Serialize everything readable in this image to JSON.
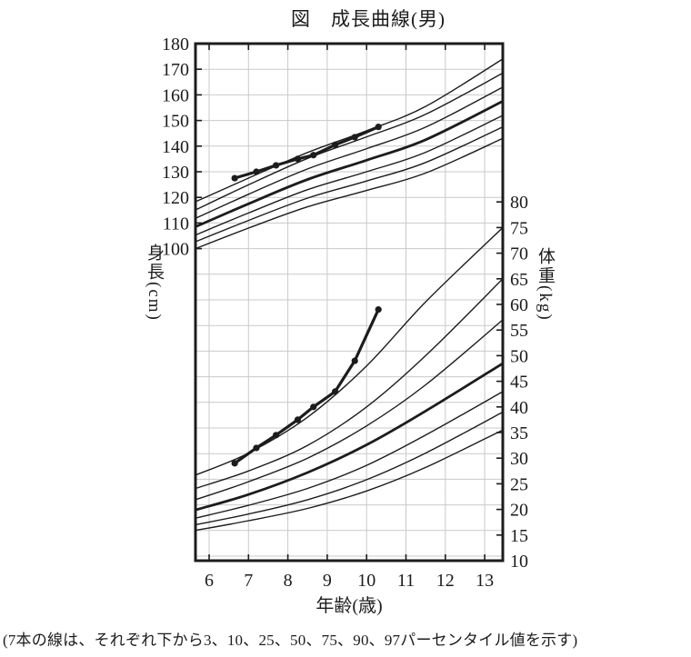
{
  "page": {
    "title": "図　成長曲線(男)",
    "footnote": "(7本の線は、それぞれ下から3、10、25、50、75、90、97パーセンタイル値を示す)"
  },
  "chart_data": {
    "type": "line",
    "title": "図　成長曲線(男)",
    "xlabel": "年齢(歳)",
    "ylabel_left": "身長(cm)",
    "ylabel_right": "体重(kg)",
    "x_ticks": [
      6,
      7,
      8,
      9,
      10,
      11,
      12,
      13
    ],
    "x_range_years": [
      5.65,
      13.46
    ],
    "y_left_ticks": [
      180,
      170,
      160,
      150,
      140,
      130,
      120,
      110,
      100
    ],
    "y_left_unit": "cm",
    "y_right_ticks": [
      80,
      75,
      70,
      65,
      60,
      55,
      50,
      45,
      40,
      35,
      30,
      25,
      20,
      15,
      10
    ],
    "y_right_unit": "kg",
    "grid": true,
    "legend_position": "none",
    "percentiles": [
      3,
      10,
      25,
      50,
      75,
      90,
      97
    ],
    "percentile_note": "7本の線は、それぞれ下から3、10、25、50、75、90、97パーセンタイル値を示す",
    "anchor_ages": [
      5.65,
      7,
      8.5,
      10,
      11.5,
      13.46
    ],
    "height_percentile_curves_cm": [
      {
        "percentile": 3,
        "bold": false,
        "values": [
          100.0,
          108.0,
          116.3,
          122.7,
          129.5,
          143.0
        ]
      },
      {
        "percentile": 10,
        "bold": false,
        "values": [
          102.7,
          111.0,
          119.7,
          126.4,
          133.6,
          147.5
        ]
      },
      {
        "percentile": 25,
        "bold": false,
        "values": [
          105.3,
          113.9,
          123.0,
          130.0,
          137.6,
          152.0
        ]
      },
      {
        "percentile": 50,
        "bold": true,
        "values": [
          108.5,
          117.5,
          127.0,
          134.5,
          142.5,
          157.5
        ]
      },
      {
        "percentile": 75,
        "bold": false,
        "values": [
          111.8,
          121.2,
          131.1,
          139.0,
          147.4,
          163.0
        ]
      },
      {
        "percentile": 90,
        "bold": false,
        "values": [
          115.1,
          124.9,
          135.2,
          143.6,
          152.4,
          168.5
        ]
      },
      {
        "percentile": 97,
        "bold": false,
        "values": [
          118.3,
          127.5,
          137.5,
          146.0,
          155.5,
          174.0
        ]
      }
    ],
    "weight_percentile_curves_kg": [
      {
        "percentile": 3,
        "bold": false,
        "values": [
          15.9,
          17.8,
          20.2,
          23.6,
          28.2,
          35.5
        ]
      },
      {
        "percentile": 10,
        "bold": false,
        "values": [
          17.0,
          19.1,
          21.9,
          25.8,
          31.0,
          39.0
        ]
      },
      {
        "percentile": 25,
        "bold": false,
        "values": [
          18.3,
          20.8,
          24.1,
          28.6,
          34.5,
          43.0
        ]
      },
      {
        "percentile": 50,
        "bold": true,
        "values": [
          19.9,
          22.9,
          27.2,
          32.6,
          39.2,
          48.5
        ]
      },
      {
        "percentile": 75,
        "bold": false,
        "values": [
          21.9,
          25.4,
          30.0,
          36.3,
          44.3,
          57.0
        ]
      },
      {
        "percentile": 90,
        "bold": false,
        "values": [
          24.1,
          27.5,
          32.5,
          40.0,
          50.0,
          65.0
        ]
      },
      {
        "percentile": 97,
        "bold": false,
        "values": [
          26.7,
          31.0,
          38.0,
          48.0,
          60.5,
          75.0
        ]
      }
    ],
    "patient_height_series": {
      "ages_years": [
        6.65,
        7.2,
        7.7,
        8.25,
        8.65,
        9.2,
        9.7,
        10.3
      ],
      "values_cm": [
        127.5,
        130.0,
        132.5,
        135.0,
        136.5,
        140.5,
        143.5,
        147.5
      ]
    },
    "patient_weight_series": {
      "ages_years": [
        6.65,
        7.2,
        7.7,
        8.25,
        8.65,
        9.2,
        9.7,
        10.3
      ],
      "values_kg": [
        29.0,
        32.0,
        34.5,
        37.5,
        40.0,
        43.0,
        49.0,
        59.0
      ]
    },
    "colors": {
      "line": "#1c1c1c",
      "grid": "#c9c9c9",
      "background": "#ffffff"
    }
  }
}
